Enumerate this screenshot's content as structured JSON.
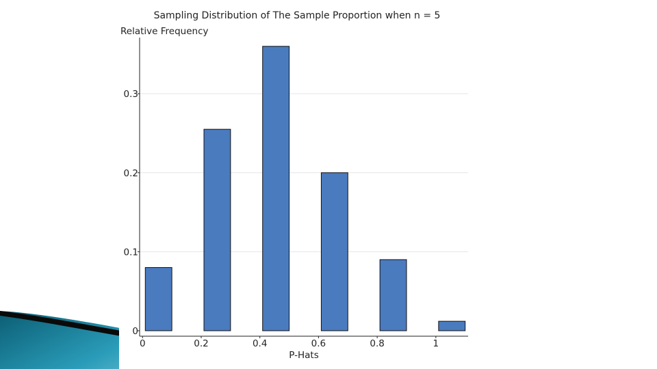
{
  "slide": {
    "decoration": "teal-swoosh-bottom-left",
    "colors": {
      "swoosh_dark": "#0e6f86",
      "swoosh_mid": "#2a9cb9",
      "swoosh_light": "#a9dbe8",
      "swoosh_black": "#0a0a0a"
    }
  },
  "chart_data": {
    "type": "bar",
    "title": "Sampling Distribution of The Sample Proportion when n = 5",
    "xlabel": "P-Hats",
    "ylabel": "Relative Frequency",
    "x": [
      0,
      0.2,
      0.4,
      0.6,
      0.8,
      1
    ],
    "values": [
      0.08,
      0.255,
      0.36,
      0.2,
      0.09,
      0.012
    ],
    "xlim": [
      -0.01,
      1.11
    ],
    "ylim": [
      0,
      0.365
    ],
    "bar_width": 0.1,
    "x_ticks": [
      0,
      0.2,
      0.4,
      0.6,
      0.8,
      1
    ],
    "x_tick_labels": [
      "0",
      "0.2",
      "0.4",
      "0.6",
      "0.8",
      "1"
    ],
    "y_ticks": [
      0,
      0.1,
      0.2,
      0.3
    ],
    "y_tick_labels": [
      "0",
      "0.1",
      "0.2",
      "0.3"
    ],
    "grid": true,
    "legend": false,
    "colors": {
      "bar": "#4a7bbf",
      "bar_edge": "#111111",
      "grid": "#e4e4e4"
    }
  }
}
